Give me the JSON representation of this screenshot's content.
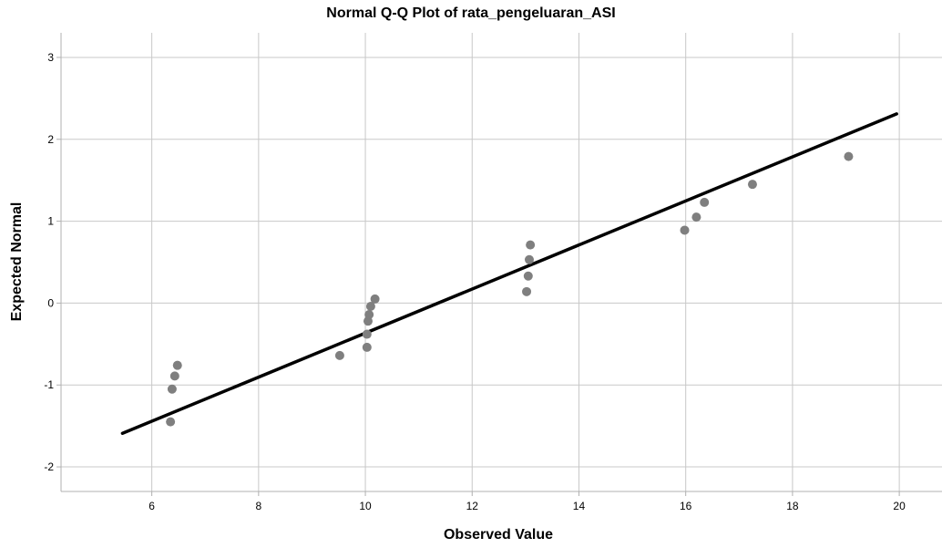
{
  "chart_data": {
    "type": "scatter",
    "title": "Normal Q-Q Plot of rata_pengeluaran_ASI",
    "xlabel": "Observed Value",
    "ylabel": "Expected Normal",
    "xlim": [
      4.3,
      20.8
    ],
    "ylim": [
      -2.3,
      3.3
    ],
    "xticks": [
      6,
      8,
      10,
      12,
      14,
      16,
      18,
      20
    ],
    "yticks": [
      -2,
      -1,
      0,
      1,
      2,
      3
    ],
    "grid": true,
    "points": [
      {
        "x": 6.35,
        "y": -1.45
      },
      {
        "x": 6.38,
        "y": -1.05
      },
      {
        "x": 6.43,
        "y": -0.89
      },
      {
        "x": 6.48,
        "y": -0.76
      },
      {
        "x": 9.52,
        "y": -0.64
      },
      {
        "x": 10.03,
        "y": -0.54
      },
      {
        "x": 10.03,
        "y": -0.38
      },
      {
        "x": 10.05,
        "y": -0.22
      },
      {
        "x": 10.07,
        "y": -0.14
      },
      {
        "x": 10.1,
        "y": -0.04
      },
      {
        "x": 10.18,
        "y": 0.05
      },
      {
        "x": 13.02,
        "y": 0.14
      },
      {
        "x": 13.05,
        "y": 0.33
      },
      {
        "x": 13.07,
        "y": 0.53
      },
      {
        "x": 13.09,
        "y": 0.71
      },
      {
        "x": 15.98,
        "y": 0.89
      },
      {
        "x": 16.2,
        "y": 1.05
      },
      {
        "x": 16.35,
        "y": 1.23
      },
      {
        "x": 17.25,
        "y": 1.45
      },
      {
        "x": 19.05,
        "y": 1.79
      }
    ],
    "reference_line": {
      "x": [
        5.45,
        19.95
      ],
      "y": [
        -1.59,
        2.31
      ]
    },
    "colors": {
      "points": "#7f7f7f",
      "line": "#000000",
      "grid": "#c8c8c8",
      "axis": "#b0b0b0"
    }
  }
}
